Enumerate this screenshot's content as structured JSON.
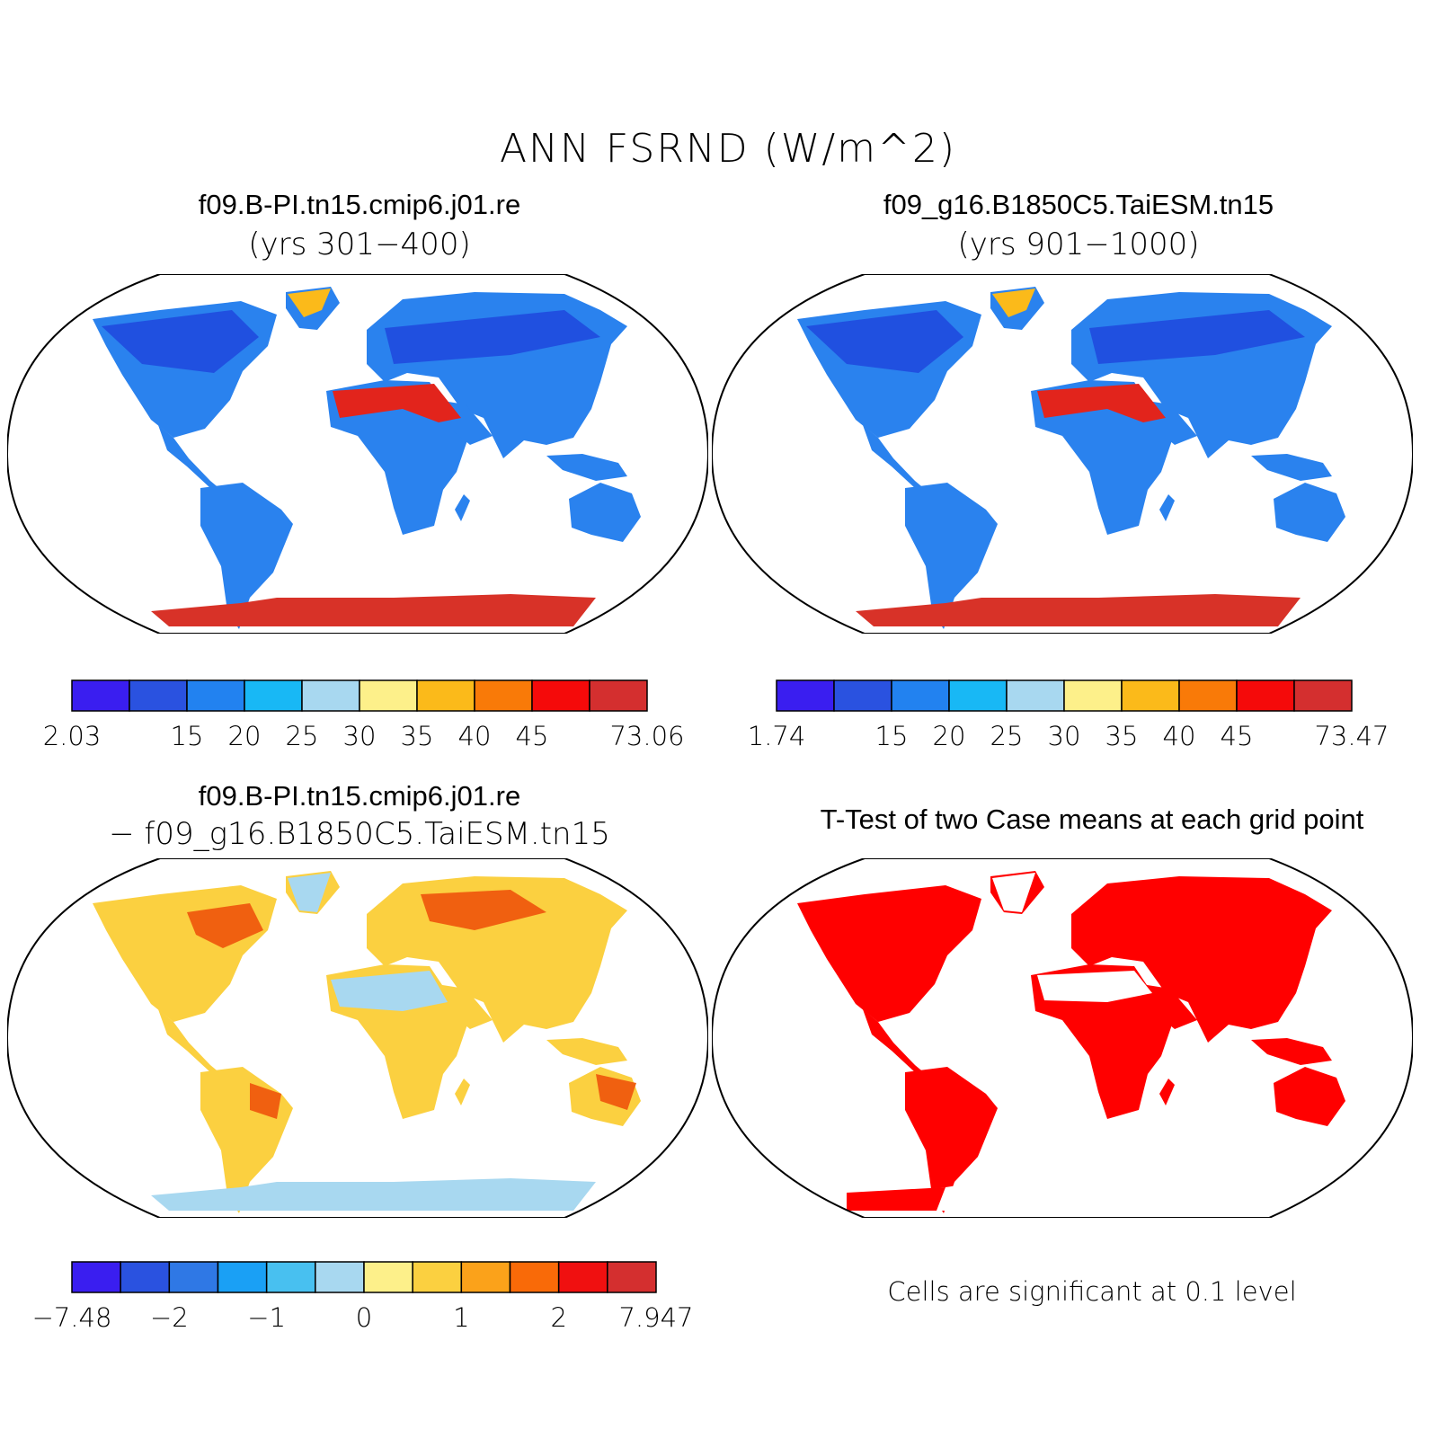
{
  "title": "ANN FSRND (W/m^2)",
  "panels": [
    {
      "title": "f09.B-PI.tn15.cmip6.j01.re",
      "subtitle": "(yrs 301−400)",
      "colorbar": {
        "colors": [
          "#3a1ef0",
          "#2a52e0",
          "#2282f0",
          "#18b8f5",
          "#a8d8f0",
          "#fdf08a",
          "#fbba1a",
          "#f97a08",
          "#f50a0a",
          "#d42f2f"
        ],
        "labels": [
          "2.03",
          "",
          "15",
          "20",
          "25",
          "30",
          "35",
          "40",
          "45",
          "",
          "73.06"
        ]
      }
    },
    {
      "title": "f09_g16.B1850C5.TaiESM.tn15",
      "subtitle": "(yrs 901−1000)",
      "colorbar": {
        "colors": [
          "#3a1ef0",
          "#2a52e0",
          "#2282f0",
          "#18b8f5",
          "#a8d8f0",
          "#fdf08a",
          "#fbba1a",
          "#f97a08",
          "#f50a0a",
          "#d42f2f"
        ],
        "labels": [
          "1.74",
          "",
          "15",
          "20",
          "25",
          "30",
          "35",
          "40",
          "45",
          "",
          "73.47"
        ]
      }
    },
    {
      "title": "f09.B-PI.tn15.cmip6.j01.re",
      "subtitle": "− f09_g16.B1850C5.TaiESM.tn15",
      "colorbar": {
        "colors": [
          "#3a1ef0",
          "#2a52e0",
          "#2f78e5",
          "#1aa0f5",
          "#48c0f0",
          "#a8d8f0",
          "#fdf08a",
          "#fbd040",
          "#fba21a",
          "#f96a08",
          "#f01010",
          "#d42f2f"
        ],
        "labels": [
          "−7.48",
          "",
          "−2",
          "",
          "−1",
          "",
          "0",
          "",
          "1",
          "",
          "2",
          "",
          "7.947"
        ]
      }
    },
    {
      "title": "T-Test of two Case means at each grid point",
      "footnote": "Cells are significant at 0.1 level"
    }
  ],
  "map_fills": {
    "mean": {
      "ocean": "#ffffff",
      "land": "#2a82ee",
      "high": "#2050e0",
      "desert": "#e2241c",
      "antarctica": "#d83228"
    },
    "diff": {
      "ocean": "#ffffff",
      "land": "#fbd040",
      "warm": "#f06010",
      "cool": "#a8d8f0",
      "antarctica": "#a8d8f0"
    },
    "ttest": {
      "ocean": "#ffffff",
      "land": "#ff0000",
      "antarctica": "#ffffff"
    }
  }
}
